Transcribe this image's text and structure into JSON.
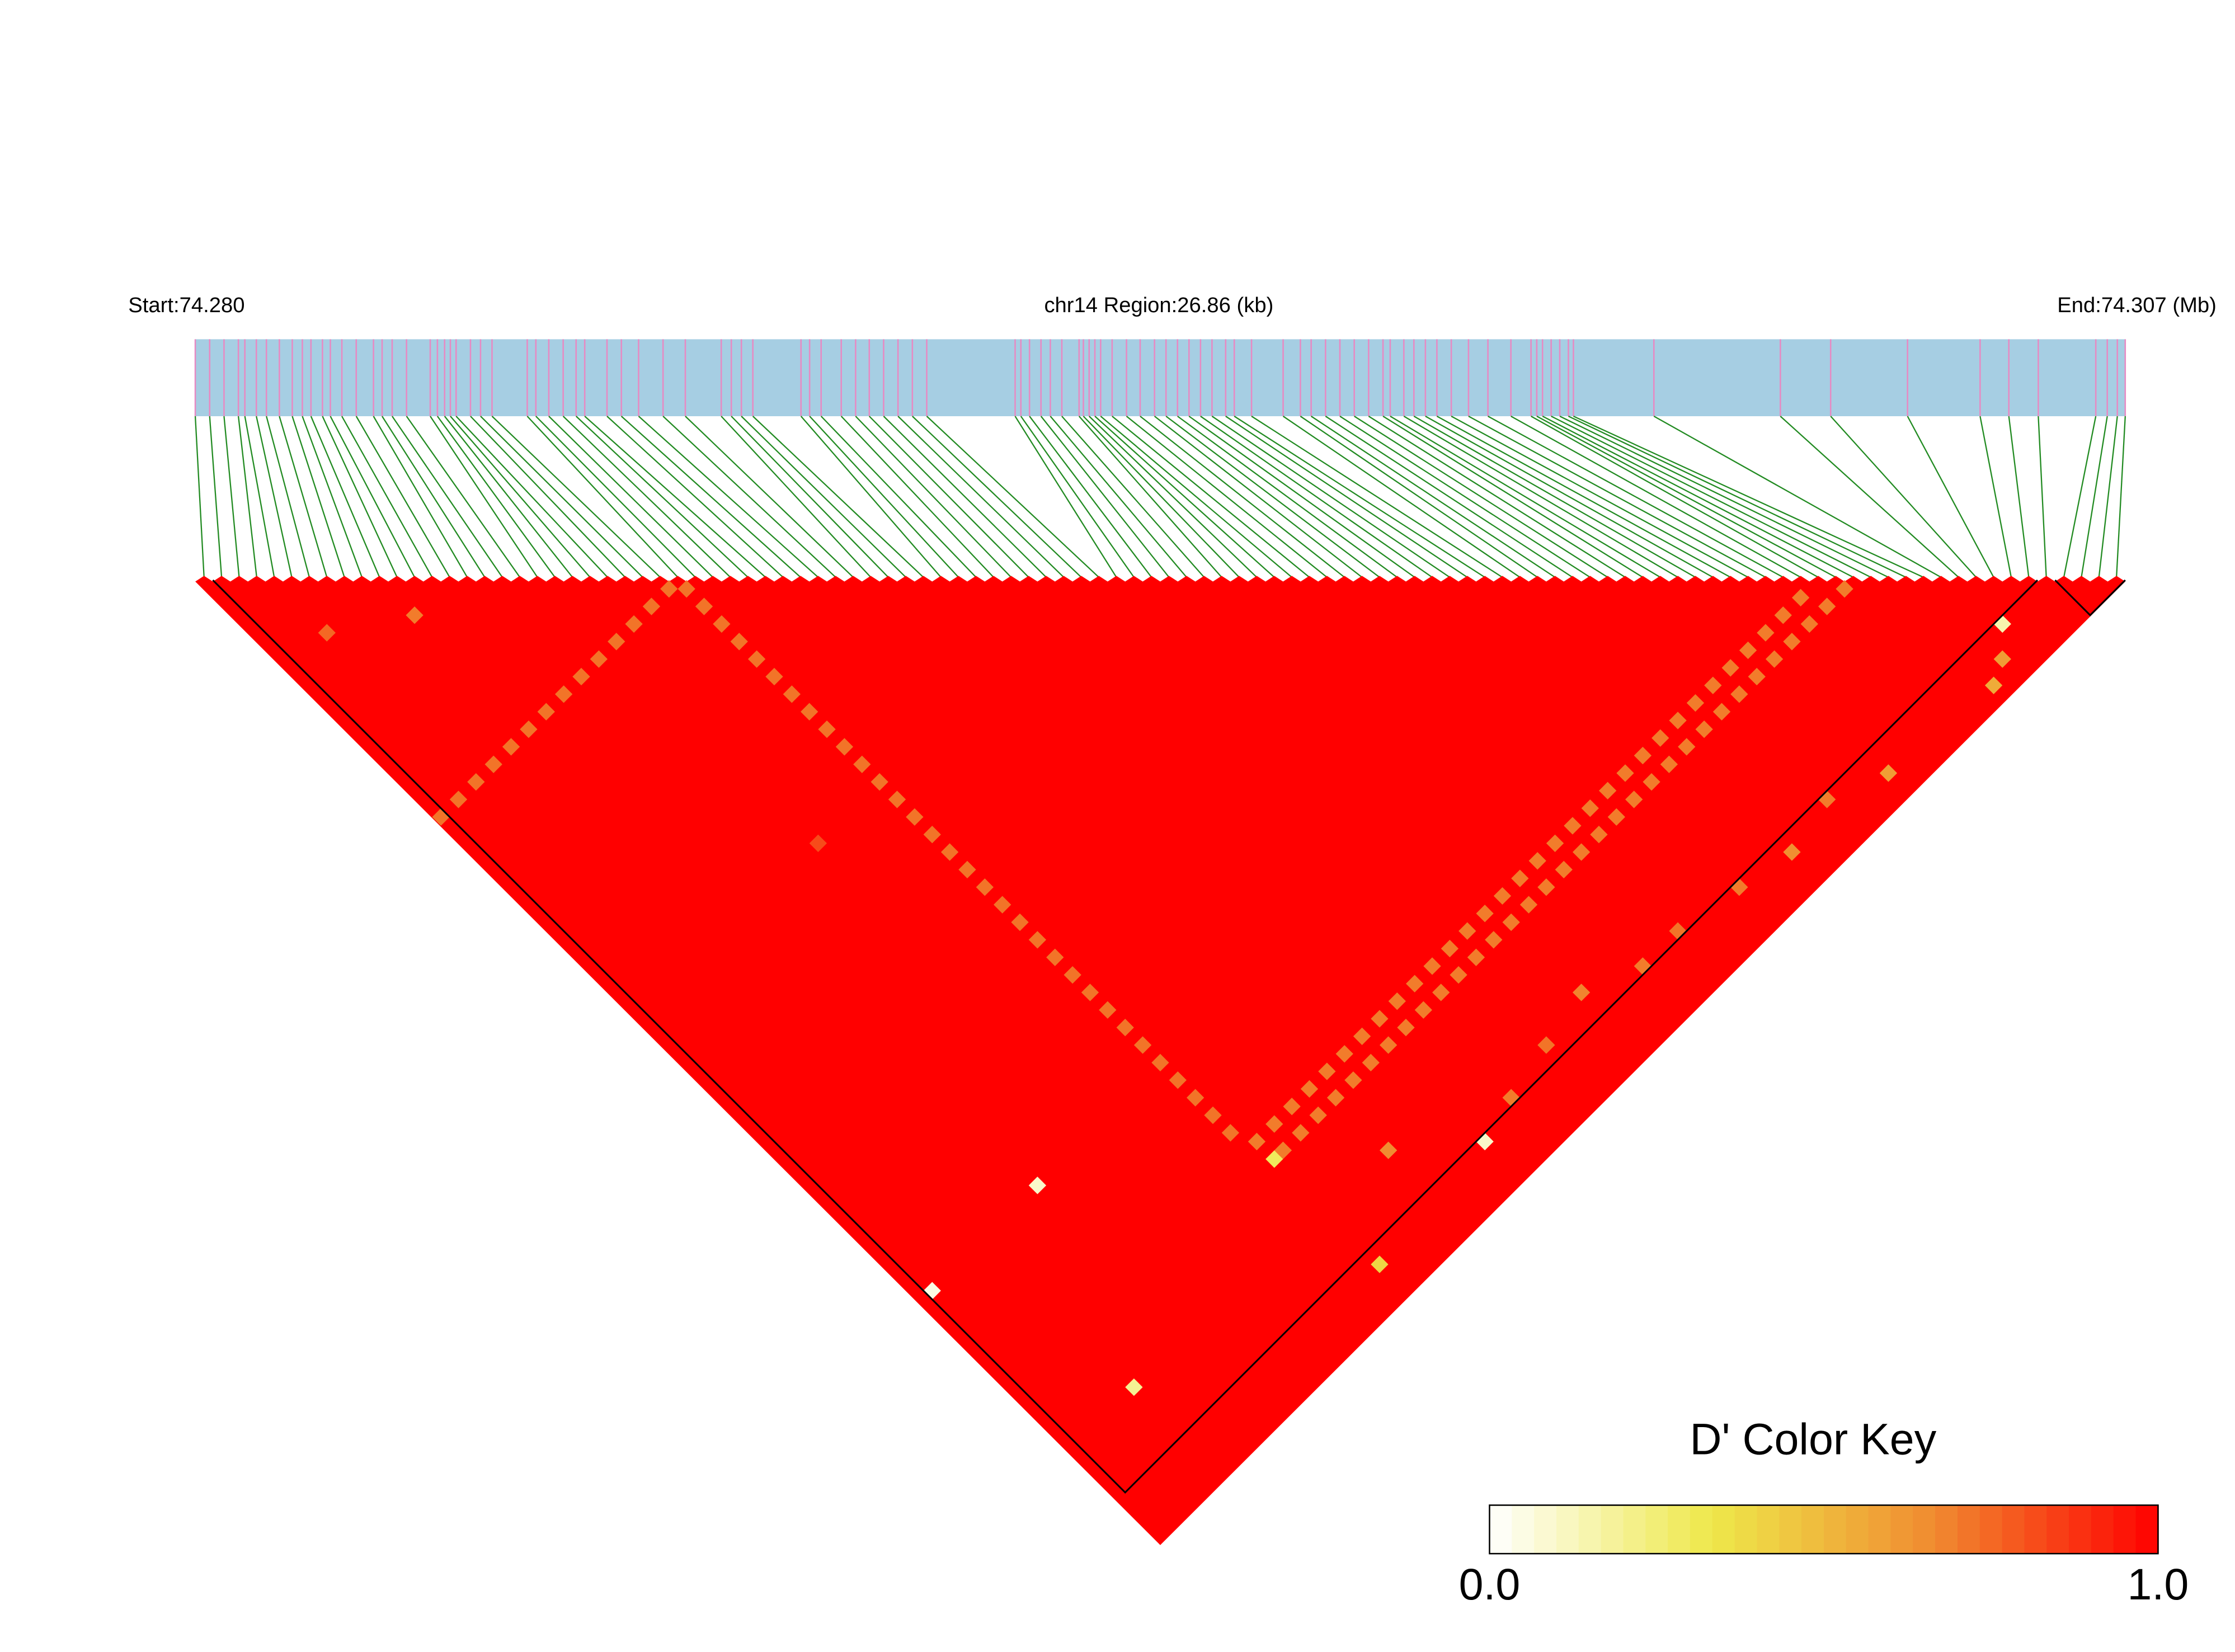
{
  "chart_data": {
    "type": "ld-heatmap",
    "start_label": "Start:74.280",
    "title": "chr14 Region:26.86 (kb)",
    "end_label": "End:74.307 (Mb)",
    "xlim": [
      0,
      26.86
    ],
    "snp_positions": [
      0,
      0.2,
      0.4,
      0.6,
      0.69,
      0.85,
      0.99,
      1.17,
      1.35,
      1.49,
      1.61,
      1.77,
      1.88,
      2.04,
      2.24,
      2.48,
      2.6,
      2.74,
      2.94,
      3.27,
      3.37,
      3.47,
      3.55,
      3.63,
      3.83,
      3.97,
      4.13,
      4.62,
      4.74,
      4.92,
      5.12,
      5.3,
      5.42,
      5.73,
      5.93,
      6.17,
      6.51,
      6.82,
      7.32,
      7.46,
      7.6,
      7.76,
      8.43,
      8.55,
      8.71,
      8.99,
      9.19,
      9.38,
      9.58,
      9.78,
      9.98,
      10.18,
      11.41,
      11.49,
      11.61,
      11.77,
      11.9,
      12.06,
      12.3,
      12.36,
      12.44,
      12.52,
      12.6,
      12.76,
      12.96,
      13.15,
      13.35,
      13.51,
      13.67,
      13.83,
      13.99,
      14.15,
      14.34,
      14.46,
      14.7,
      15.14,
      15.38,
      15.53,
      15.73,
      15.93,
      16.13,
      16.33,
      16.53,
      16.63,
      16.82,
      16.96,
      17.12,
      17.28,
      17.48,
      17.72,
      17.99,
      18.31,
      18.59,
      18.67,
      18.75,
      18.87,
      18.99,
      19.11,
      19.18,
      20.3,
      22.06,
      22.76,
      23.83,
      24.84,
      25.24,
      25.65,
      26.45,
      26.61,
      26.75,
      26.86
    ],
    "blocks": [
      [
        1,
        104
      ],
      [
        106,
        109
      ]
    ],
    "ld_cells": [
      [
        27,
        28,
        0.72
      ],
      [
        27,
        30,
        0.72
      ],
      [
        27,
        32,
        0.72
      ],
      [
        27,
        34,
        0.72
      ],
      [
        27,
        36,
        0.72
      ],
      [
        27,
        38,
        0.72
      ],
      [
        27,
        40,
        0.72
      ],
      [
        27,
        42,
        0.72
      ],
      [
        27,
        44,
        0.72
      ],
      [
        27,
        46,
        0.72
      ],
      [
        27,
        48,
        0.72
      ],
      [
        27,
        50,
        0.72
      ],
      [
        27,
        52,
        0.72
      ],
      [
        27,
        54,
        0.72
      ],
      [
        27,
        56,
        0.72
      ],
      [
        27,
        58,
        0.72
      ],
      [
        27,
        60,
        0.72
      ],
      [
        27,
        62,
        0.72
      ],
      [
        27,
        64,
        0.72
      ],
      [
        27,
        66,
        0.72
      ],
      [
        27,
        68,
        0.72
      ],
      [
        27,
        70,
        0.72
      ],
      [
        27,
        72,
        0.72
      ],
      [
        27,
        74,
        0.72
      ],
      [
        27,
        76,
        0.72
      ],
      [
        27,
        78,
        0.72
      ],
      [
        27,
        80,
        0.72
      ],
      [
        27,
        82,
        0.72
      ],
      [
        27,
        84,
        0.72
      ],
      [
        27,
        86,
        0.72
      ],
      [
        27,
        88,
        0.72
      ],
      [
        27,
        90,
        0.72
      ],
      [
        0,
        27,
        0.72
      ],
      [
        2,
        27,
        0.72
      ],
      [
        4,
        27,
        0.72
      ],
      [
        6,
        27,
        0.72
      ],
      [
        8,
        27,
        0.72
      ],
      [
        10,
        27,
        0.72
      ],
      [
        12,
        27,
        0.72
      ],
      [
        14,
        27,
        0.72
      ],
      [
        16,
        27,
        0.72
      ],
      [
        18,
        27,
        0.72
      ],
      [
        20,
        27,
        0.72
      ],
      [
        22,
        27,
        0.72
      ],
      [
        24,
        27,
        0.72
      ],
      [
        26,
        27,
        0.72
      ],
      [
        28,
        92,
        0.7
      ],
      [
        30,
        92,
        0.7
      ],
      [
        32,
        92,
        0.7
      ],
      [
        34,
        92,
        0.7
      ],
      [
        36,
        92,
        0.7
      ],
      [
        38,
        92,
        0.7
      ],
      [
        40,
        92,
        0.7
      ],
      [
        42,
        92,
        0.7
      ],
      [
        44,
        92,
        0.7
      ],
      [
        46,
        92,
        0.7
      ],
      [
        48,
        92,
        0.7
      ],
      [
        50,
        92,
        0.7
      ],
      [
        52,
        92,
        0.7
      ],
      [
        54,
        92,
        0.7
      ],
      [
        56,
        92,
        0.7
      ],
      [
        58,
        92,
        0.7
      ],
      [
        60,
        92,
        0.7
      ],
      [
        62,
        92,
        0.7
      ],
      [
        64,
        92,
        0.7
      ],
      [
        66,
        92,
        0.7
      ],
      [
        68,
        92,
        0.7
      ],
      [
        70,
        92,
        0.7
      ],
      [
        72,
        92,
        0.7
      ],
      [
        74,
        92,
        0.7
      ],
      [
        76,
        92,
        0.7
      ],
      [
        78,
        92,
        0.7
      ],
      [
        80,
        92,
        0.7
      ],
      [
        82,
        92,
        0.7
      ],
      [
        84,
        92,
        0.7
      ],
      [
        86,
        92,
        0.7
      ],
      [
        88,
        92,
        0.7
      ],
      [
        90,
        92,
        0.7
      ],
      [
        29,
        94,
        0.7
      ],
      [
        31,
        94,
        0.7
      ],
      [
        33,
        94,
        0.7
      ],
      [
        35,
        94,
        0.7
      ],
      [
        37,
        94,
        0.7
      ],
      [
        39,
        94,
        0.7
      ],
      [
        41,
        94,
        0.7
      ],
      [
        43,
        94,
        0.7
      ],
      [
        45,
        94,
        0.7
      ],
      [
        47,
        94,
        0.7
      ],
      [
        49,
        94,
        0.7
      ],
      [
        51,
        94,
        0.7
      ],
      [
        53,
        94,
        0.7
      ],
      [
        55,
        94,
        0.7
      ],
      [
        57,
        94,
        0.7
      ],
      [
        59,
        94,
        0.7
      ],
      [
        61,
        94,
        0.7
      ],
      [
        63,
        94,
        0.7
      ],
      [
        65,
        94,
        0.7
      ],
      [
        67,
        94,
        0.7
      ],
      [
        69,
        94,
        0.7
      ],
      [
        71,
        94,
        0.7
      ],
      [
        73,
        94,
        0.7
      ],
      [
        75,
        94,
        0.7
      ],
      [
        77,
        94,
        0.7
      ],
      [
        79,
        94,
        0.7
      ],
      [
        81,
        94,
        0.7
      ],
      [
        83,
        94,
        0.7
      ],
      [
        85,
        94,
        0.7
      ],
      [
        87,
        94,
        0.7
      ],
      [
        89,
        94,
        0.7
      ],
      [
        91,
        94,
        0.7
      ],
      [
        93,
        94,
        0.7
      ],
      [
        1,
        82,
        0.05
      ],
      [
        13,
        82,
        0.1
      ],
      [
        7,
        99,
        0.2
      ],
      [
        41,
        105,
        0.1
      ],
      [
        28,
        94,
        0.3
      ],
      [
        100,
        105,
        0.15
      ],
      [
        28,
        106,
        0.4
      ],
      [
        4,
        10,
        0.75
      ],
      [
        10,
        14,
        0.7
      ],
      [
        20,
        50,
        0.82
      ],
      [
        60,
        104,
        0.7
      ],
      [
        64,
        104,
        0.72
      ],
      [
        70,
        105,
        0.7
      ],
      [
        75,
        106,
        0.65
      ],
      [
        80,
        105,
        0.7
      ],
      [
        85,
        107,
        0.6
      ],
      [
        50,
        103,
        0.72
      ],
      [
        45,
        104,
        0.7
      ],
      [
        96,
        108,
        0.55
      ],
      [
        98,
        107,
        0.6
      ],
      [
        55,
        102,
        0.68
      ],
      [
        35,
        100,
        0.66
      ]
    ],
    "color_key": {
      "title": "D' Color Key",
      "lim": [
        0,
        1
      ],
      "ticks": [
        {
          "value": 0,
          "label": "0.0"
        },
        {
          "value": 1,
          "label": "1.0"
        }
      ],
      "colors": [
        "#ffffff",
        "#eee84a",
        "#f08a30",
        "#ff0000"
      ]
    },
    "colors": {
      "track": "#a6cee3",
      "snp_line": "#e78ac3",
      "connector": "#228b22",
      "block": "#000000"
    }
  }
}
